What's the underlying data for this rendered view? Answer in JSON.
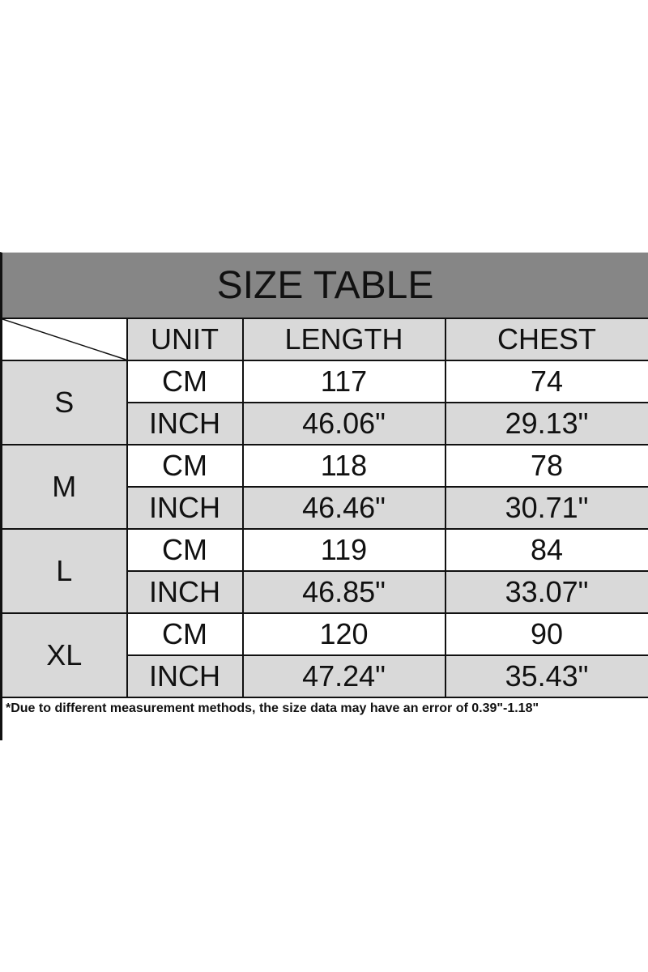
{
  "title": "SIZE TABLE",
  "columns": [
    "UNIT",
    "LENGTH",
    "CHEST"
  ],
  "rows": [
    {
      "size": "S",
      "cm": {
        "unit": "CM",
        "length": "117",
        "chest": "74"
      },
      "inch": {
        "unit": "INCH",
        "length": "46.06\"",
        "chest": "29.13\""
      }
    },
    {
      "size": "M",
      "cm": {
        "unit": "CM",
        "length": "118",
        "chest": "78"
      },
      "inch": {
        "unit": "INCH",
        "length": "46.46\"",
        "chest": "30.71\""
      }
    },
    {
      "size": "L",
      "cm": {
        "unit": "CM",
        "length": "119",
        "chest": "84"
      },
      "inch": {
        "unit": "INCH",
        "length": "46.85\"",
        "chest": "33.07\""
      }
    },
    {
      "size": "XL",
      "cm": {
        "unit": "CM",
        "length": "120",
        "chest": "90"
      },
      "inch": {
        "unit": "INCH",
        "length": "47.24\"",
        "chest": "35.43\""
      }
    }
  ],
  "note": "*Due to different measurement methods, the size data may have an error of 0.39\"-1.18\"",
  "colors": {
    "title_bg": "#868686",
    "cell_gray": "#d9d9d9"
  }
}
